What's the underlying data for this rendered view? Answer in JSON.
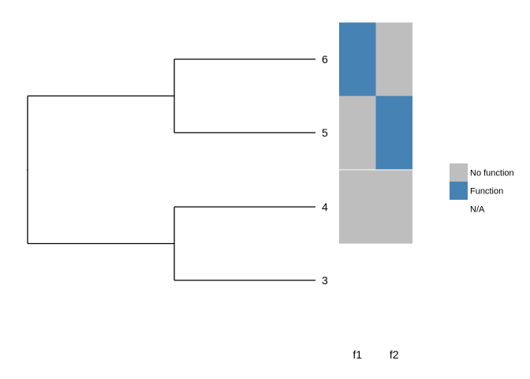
{
  "chart_data": {
    "type": "heatmap",
    "title": "",
    "tree": {
      "tips": [
        "6",
        "5",
        "4",
        "3"
      ],
      "clades": [
        [
          "6",
          "5"
        ],
        [
          "4",
          "3"
        ]
      ]
    },
    "columns": [
      "f1",
      "f2"
    ],
    "rows": [
      "6",
      "5",
      "4",
      "3"
    ],
    "matrix": [
      [
        "Function",
        "No function"
      ],
      [
        "No function",
        "Function"
      ],
      [
        "No function",
        "No function"
      ],
      [
        "N/A",
        "N/A"
      ]
    ],
    "legend": {
      "position": "right",
      "entries": [
        {
          "label": "No function",
          "color": "#bebebe"
        },
        {
          "label": "Function",
          "color": "#4682b4"
        },
        {
          "label": "N/A",
          "color": "#ffffff"
        }
      ]
    },
    "colors": {
      "branch": "#000000",
      "no_function": "#bebebe",
      "function": "#4682b4",
      "na": "#ffffff"
    }
  }
}
